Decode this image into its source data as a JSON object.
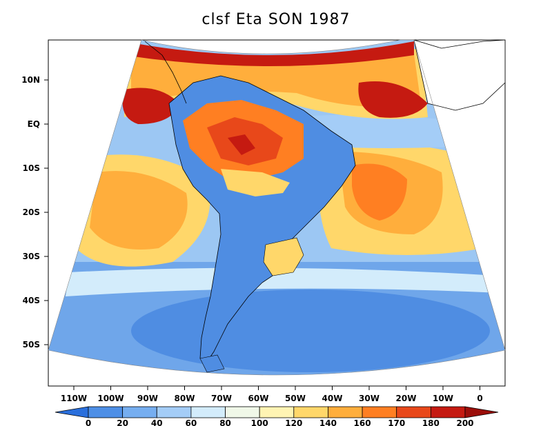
{
  "title": "clsf Eta SON 1987",
  "lat_labels": [
    "10N",
    "EQ",
    "10S",
    "20S",
    "30S",
    "40S",
    "50S"
  ],
  "lon_labels": [
    "110W",
    "100W",
    "90W",
    "80W",
    "70W",
    "60W",
    "50W",
    "40W",
    "30W",
    "20W",
    "10W",
    "0"
  ],
  "colorbar": {
    "labels": [
      "0",
      "20",
      "40",
      "60",
      "80",
      "100",
      "120",
      "140",
      "160",
      "170",
      "180",
      "200"
    ],
    "colors": [
      "#2a6fdc",
      "#4e8fe6",
      "#76aef0",
      "#a4cdf7",
      "#d3ecfb",
      "#f0f8e8",
      "#fff4b3",
      "#ffd76a",
      "#ffae3c",
      "#ff7f22",
      "#e8481a",
      "#c51a11",
      "#9b0e0a"
    ]
  }
}
